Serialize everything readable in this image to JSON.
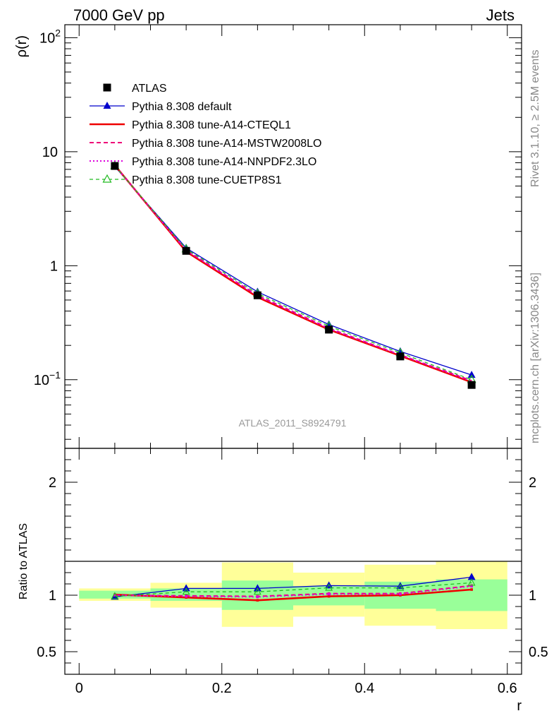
{
  "header": {
    "left": "7000 GeV pp",
    "right": "Jets"
  },
  "side_labels": {
    "rivet": "Rivet 3.1.10, ≥ 2.5M events",
    "mcplots": "mcplots.cern.ch [arXiv:1306.3436]"
  },
  "watermark": "ATLAS_2011_S8924791",
  "chart_data": [
    {
      "type": "line",
      "panel": "main",
      "ylabel": "ρ(r)",
      "yscale": "log",
      "xlim": [
        -0.02,
        0.62
      ],
      "ylim": [
        0.025,
        130
      ],
      "y_ticks": [
        {
          "value": 0.1,
          "label_base": "10",
          "label_exp": "−1"
        },
        {
          "value": 1,
          "label_base": "1",
          "label_exp": ""
        },
        {
          "value": 10,
          "label_base": "10",
          "label_exp": ""
        },
        {
          "value": 100,
          "label_base": "10",
          "label_exp": "2"
        }
      ],
      "legend_position": "top-left",
      "x": [
        0.05,
        0.15,
        0.25,
        0.35,
        0.45,
        0.55
      ],
      "series": [
        {
          "name": "ATLAS",
          "color": "#000000",
          "marker": "square",
          "values": [
            7.5,
            1.35,
            0.55,
            0.275,
            0.16,
            0.09
          ]
        },
        {
          "name": "Pythia 8.308 default",
          "color": "#0000cc",
          "marker": "triangle",
          "values": [
            7.4,
            1.43,
            0.59,
            0.305,
            0.177,
            0.11
          ]
        },
        {
          "name": "Pythia 8.308 tune-A14-CTEQL1",
          "color": "#ee0000",
          "marker": "none",
          "values": [
            7.6,
            1.33,
            0.53,
            0.275,
            0.162,
            0.095
          ]
        },
        {
          "name": "Pythia 8.308 tune-A14-MSTW2008LO",
          "color": "#ee0077",
          "marker": "none",
          "values": [
            7.55,
            1.36,
            0.55,
            0.283,
            0.165,
            0.098
          ]
        },
        {
          "name": "Pythia 8.308 tune-A14-NNPDF2.3LO",
          "color": "#dd00dd",
          "marker": "none",
          "values": [
            7.55,
            1.36,
            0.545,
            0.28,
            0.165,
            0.097
          ]
        },
        {
          "name": "Pythia 8.308 tune-CUETP8S1",
          "color": "#22bb22",
          "marker": "open-triangle",
          "values": [
            7.5,
            1.4,
            0.57,
            0.295,
            0.172,
            0.1
          ]
        }
      ]
    },
    {
      "type": "line",
      "panel": "ratio",
      "xlabel": "r",
      "ylabel": "Ratio to ATLAS",
      "xlim": [
        -0.02,
        0.62
      ],
      "ylim": [
        0.3,
        2.3
      ],
      "x_ticks": [
        0,
        0.2,
        0.4,
        0.6
      ],
      "x_tick_labels": [
        "0",
        "0.2",
        "0.4",
        "0.6"
      ],
      "y_ticks": [
        0.5,
        1,
        2
      ],
      "y_tick_labels": [
        "0.5",
        "1",
        "2"
      ],
      "bins": [
        [
          0,
          0.1
        ],
        [
          0.1,
          0.2
        ],
        [
          0.2,
          0.3
        ],
        [
          0.3,
          0.4
        ],
        [
          0.4,
          0.5
        ],
        [
          0.5,
          0.6
        ]
      ],
      "band_green": [
        [
          0.97,
          1.04
        ],
        [
          0.95,
          1.06
        ],
        [
          0.87,
          1.13
        ],
        [
          0.91,
          1.08
        ],
        [
          0.88,
          1.12
        ],
        [
          0.86,
          1.14
        ]
      ],
      "band_yellow": [
        [
          0.95,
          1.06
        ],
        [
          0.89,
          1.11
        ],
        [
          0.72,
          1.29
        ],
        [
          0.81,
          1.2
        ],
        [
          0.73,
          1.27
        ],
        [
          0.7,
          1.3
        ]
      ],
      "x": [
        0.05,
        0.15,
        0.25,
        0.35,
        0.45,
        0.55
      ],
      "series": [
        {
          "name": "Pythia 8.308 default",
          "color": "#0000cc",
          "values": [
            0.985,
            1.06,
            1.06,
            1.085,
            1.08,
            1.16
          ]
        },
        {
          "name": "Pythia 8.308 tune-A14-CTEQL1",
          "color": "#ee0000",
          "values": [
            1.005,
            0.98,
            0.955,
            0.99,
            1.0,
            1.05
          ]
        },
        {
          "name": "Pythia 8.308 tune-A14-MSTW2008LO",
          "color": "#ee0077",
          "values": [
            1.0,
            0.995,
            0.99,
            1.015,
            1.015,
            1.085
          ]
        },
        {
          "name": "Pythia 8.308 tune-A14-NNPDF2.3LO",
          "color": "#dd00dd",
          "values": [
            1.0,
            0.99,
            0.985,
            1.01,
            1.01,
            1.08
          ]
        },
        {
          "name": "Pythia 8.308 tune-CUETP8S1",
          "color": "#22bb22",
          "values": [
            0.99,
            1.03,
            1.03,
            1.065,
            1.065,
            1.11
          ]
        }
      ]
    }
  ]
}
